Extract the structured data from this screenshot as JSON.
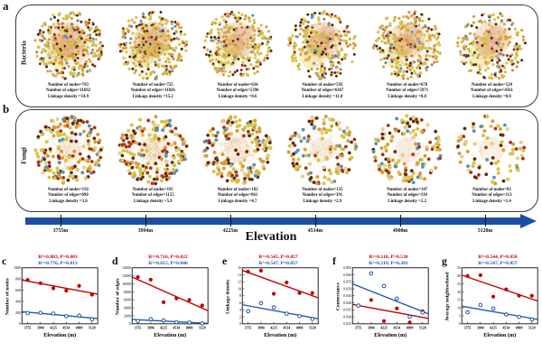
{
  "figure": {
    "panel_a_letter": "a",
    "panel_b_letter": "b",
    "row_a_label": "Bacteria",
    "row_b_label": "Fungi",
    "elevation_axis_label": "Elevation",
    "elevations_m": [
      "3755m",
      "3994m",
      "4225m",
      "4534m",
      "4900m",
      "5120m"
    ],
    "caption_labels": {
      "nodes": "Number of nodes=",
      "edges": "Number of edges=",
      "linkage": "Linkage density ="
    }
  },
  "networks": {
    "bacteria": [
      {
        "nodes": 783,
        "edges": 11692,
        "linkage": "14.9"
      },
      {
        "nodes": 725,
        "edges": 11026,
        "linkage": "15.2"
      },
      {
        "nodes": 634,
        "edges": 5396,
        "linkage": "8.6"
      },
      {
        "nodes": 592,
        "edges": 6367,
        "linkage": "11.8"
      },
      {
        "nodes": 678,
        "edges": 5971,
        "linkage": "8.8"
      },
      {
        "nodes": 520,
        "edges": 4561,
        "linkage": "8.8"
      }
    ],
    "fungi": [
      {
        "nodes": 192,
        "edges": 690,
        "linkage": "3.6"
      },
      {
        "nodes": 195,
        "edges": 1155,
        "linkage": "5.9"
      },
      {
        "nodes": 182,
        "edges": 861,
        "linkage": "4.7"
      },
      {
        "nodes": 135,
        "edges": 391,
        "linkage": "2.9"
      },
      {
        "nodes": 147,
        "edges": 318,
        "linkage": "2.2"
      },
      {
        "nodes": 83,
        "edges": 113,
        "linkage": "1.4"
      }
    ]
  },
  "colors": {
    "accent_red": "#c00000",
    "accent_blue": "#1e56a8",
    "arrow_blue": "#1c4fa1",
    "bacteria_palette": [
      [
        "#d8c83a",
        38
      ],
      [
        "#df962e",
        22
      ],
      [
        "#c9b169",
        8
      ],
      [
        "#3a1d12",
        14
      ],
      [
        "#8a2014",
        8
      ],
      [
        "#3f93d4",
        7
      ],
      [
        "#e06a50",
        3
      ]
    ],
    "fungi_palette": [
      [
        "#d8c83a",
        26
      ],
      [
        "#df962e",
        20
      ],
      [
        "#5a1f12",
        16
      ],
      [
        "#a8281a",
        16
      ],
      [
        "#3f93d4",
        10
      ],
      [
        "#e8d28a",
        12
      ]
    ]
  },
  "chart_data": [
    {
      "type": "scatter",
      "panel": "c",
      "ylabel": "Number of nodes",
      "xlabel": "Elevation (m)",
      "x_ticks": [
        "3755",
        "3994",
        "4225",
        "4534",
        "4900",
        "5120"
      ],
      "ylim": [
        0,
        1000
      ],
      "ystep": 200,
      "ydec": 0,
      "series": [
        {
          "name": "Bacteria",
          "color": "#c00000",
          "stats": "R²=0.883, P=0.003",
          "values": [
            783,
            725,
            634,
            592,
            678,
            520
          ]
        },
        {
          "name": "Fungi",
          "color": "#1e56a8",
          "stats": "R²=0.776, P=0.013",
          "values": [
            192,
            195,
            182,
            135,
            147,
            83
          ]
        }
      ]
    },
    {
      "type": "scatter",
      "panel": "d",
      "ylabel": "Number of edges",
      "xlabel": "Elevation (m)",
      "x_ticks": [
        "3755",
        "3994",
        "4225",
        "4534",
        "4900",
        "5120"
      ],
      "ylim": [
        0,
        14000
      ],
      "ystep": 2000,
      "ydec": 0,
      "series": [
        {
          "name": "Bacteria",
          "color": "#c00000",
          "stats": "R²=0.716, P=0.022",
          "values": [
            11692,
            11026,
            5396,
            6367,
            5971,
            4561
          ]
        },
        {
          "name": "Fungi",
          "color": "#1e56a8",
          "stats": "R²=0.615, P=0.040",
          "values": [
            690,
            1155,
            861,
            391,
            318,
            113
          ]
        }
      ]
    },
    {
      "type": "scatter",
      "panel": "e",
      "ylabel": "Linkage density",
      "xlabel": "Elevation (m)",
      "x_ticks": [
        "3755",
        "3994",
        "4225",
        "4534",
        "4900",
        "5120"
      ],
      "ylim": [
        0,
        16
      ],
      "ystep": 2,
      "ydec": 0,
      "series": [
        {
          "name": "Bacteria",
          "color": "#c00000",
          "stats": "R²=0.545, P=0.057",
          "values": [
            14.9,
            15.2,
            8.6,
            11.8,
            8.8,
            8.8
          ]
        },
        {
          "name": "Fungi",
          "color": "#1e56a8",
          "stats": "R²=0.547, P=0.057",
          "values": [
            3.6,
            5.9,
            4.7,
            2.9,
            2.2,
            1.4
          ]
        }
      ]
    },
    {
      "type": "scatter",
      "panel": "f",
      "ylabel": "Connectance",
      "xlabel": "Elevation (m)",
      "x_ticks": [
        "3755",
        "3994",
        "4225",
        "4534",
        "4900",
        "5120"
      ],
      "ylim": [
        0.025,
        0.065
      ],
      "ystep": 0.005,
      "ydec": 3,
      "series": [
        {
          "name": "Bacteria",
          "color": "#c00000",
          "stats": "R²=0.118, P=0.530",
          "values": [
            0.038,
            0.042,
            0.027,
            0.036,
            0.026,
            0.034
          ]
        },
        {
          "name": "Fungi",
          "color": "#1e56a8",
          "stats": "R²=0.218, P=0.201",
          "values": [
            0.038,
            0.061,
            0.052,
            0.043,
            0.03,
            0.033
          ]
        }
      ]
    },
    {
      "type": "scatter",
      "panel": "g",
      "ylabel": "Average neighborhood",
      "xlabel": "Elevation (m)",
      "x_ticks": [
        "3755",
        "3994",
        "4225",
        "4534",
        "4900",
        "5120"
      ],
      "ylim": [
        0,
        35
      ],
      "ystep": 5,
      "ydec": 0,
      "series": [
        {
          "name": "Bacteria",
          "color": "#c00000",
          "stats": "R²=0.544, P=0.058",
          "values": [
            29.9,
            30.4,
            17.0,
            21.5,
            17.6,
            17.5
          ]
        },
        {
          "name": "Fungi",
          "color": "#1e56a8",
          "stats": "R²=0.547, P=0.057",
          "values": [
            7.2,
            11.8,
            9.5,
            5.8,
            4.3,
            2.7
          ]
        }
      ]
    }
  ]
}
